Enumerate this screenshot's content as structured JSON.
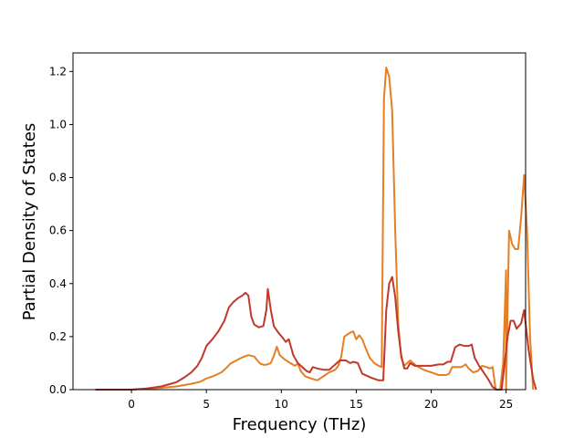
{
  "chart_data": {
    "type": "line",
    "title": "",
    "xlabel": "Frequency (THz)",
    "ylabel": "Partial Density of States",
    "xlim": [
      -3.9,
      26.3
    ],
    "ylim": [
      0.0,
      1.27
    ],
    "xticks": [
      0,
      5,
      10,
      15,
      20,
      25
    ],
    "yticks": [
      0.0,
      0.2,
      0.4,
      0.6,
      0.8,
      1.0,
      1.2
    ],
    "ytick_labels": [
      "0.0",
      "0.2",
      "0.4",
      "0.6",
      "0.8",
      "1.0",
      "1.2"
    ],
    "grid": false,
    "legend": "none",
    "series": [
      {
        "color": "#e67e22",
        "points": [
          [
            -2.4,
            0.0
          ],
          [
            0,
            0.0
          ],
          [
            1,
            0.003
          ],
          [
            2,
            0.007
          ],
          [
            3,
            0.012
          ],
          [
            4,
            0.022
          ],
          [
            4.6,
            0.03
          ],
          [
            5,
            0.042
          ],
          [
            5.5,
            0.052
          ],
          [
            6,
            0.065
          ],
          [
            6.3,
            0.08
          ],
          [
            6.6,
            0.098
          ],
          [
            7,
            0.11
          ],
          [
            7.4,
            0.122
          ],
          [
            7.8,
            0.13
          ],
          [
            8.2,
            0.125
          ],
          [
            8.4,
            0.11
          ],
          [
            8.6,
            0.098
          ],
          [
            8.8,
            0.094
          ],
          [
            9,
            0.094
          ],
          [
            9.3,
            0.1
          ],
          [
            9.5,
            0.128
          ],
          [
            9.7,
            0.162
          ],
          [
            9.9,
            0.13
          ],
          [
            10.2,
            0.115
          ],
          [
            10.6,
            0.1
          ],
          [
            10.9,
            0.09
          ],
          [
            11.1,
            0.098
          ],
          [
            11.3,
            0.07
          ],
          [
            11.6,
            0.05
          ],
          [
            12,
            0.042
          ],
          [
            12.4,
            0.035
          ],
          [
            12.8,
            0.05
          ],
          [
            13.2,
            0.065
          ],
          [
            13.6,
            0.075
          ],
          [
            13.8,
            0.09
          ],
          [
            14,
            0.125
          ],
          [
            14.2,
            0.2
          ],
          [
            14.6,
            0.215
          ],
          [
            14.8,
            0.22
          ],
          [
            15,
            0.19
          ],
          [
            15.2,
            0.205
          ],
          [
            15.4,
            0.19
          ],
          [
            15.6,
            0.16
          ],
          [
            15.9,
            0.12
          ],
          [
            16.2,
            0.1
          ],
          [
            16.5,
            0.09
          ],
          [
            16.7,
            0.085
          ],
          [
            16.85,
            1.1
          ],
          [
            17,
            1.215
          ],
          [
            17.2,
            1.18
          ],
          [
            17.4,
            1.05
          ],
          [
            17.6,
            0.6
          ],
          [
            17.8,
            0.25
          ],
          [
            18,
            0.12
          ],
          [
            18.2,
            0.09
          ],
          [
            18.4,
            0.1
          ],
          [
            18.6,
            0.11
          ],
          [
            18.8,
            0.1
          ],
          [
            19,
            0.09
          ],
          [
            19.5,
            0.075
          ],
          [
            20,
            0.065
          ],
          [
            20.5,
            0.055
          ],
          [
            21,
            0.055
          ],
          [
            21.2,
            0.06
          ],
          [
            21.4,
            0.085
          ],
          [
            21.7,
            0.085
          ],
          [
            22,
            0.085
          ],
          [
            22.3,
            0.095
          ],
          [
            22.5,
            0.08
          ],
          [
            22.8,
            0.065
          ],
          [
            23.1,
            0.07
          ],
          [
            23.4,
            0.09
          ],
          [
            23.7,
            0.085
          ],
          [
            23.9,
            0.08
          ],
          [
            24.1,
            0.085
          ],
          [
            24.3,
            0.0
          ],
          [
            24.6,
            0.0
          ],
          [
            24.8,
            0.1
          ],
          [
            25,
            0.45
          ],
          [
            25.2,
            0.6
          ],
          [
            25.4,
            0.55
          ],
          [
            25.6,
            0.53
          ],
          [
            25.8,
            0.53
          ],
          [
            26.0,
            0.65
          ],
          [
            26.2,
            0.81
          ],
          [
            26.4,
            0.6
          ],
          [
            26.6,
            0.2
          ],
          [
            26.8,
            0.0
          ],
          [
            25,
            0.0
          ]
        ]
      },
      {
        "color": "#c0392b",
        "points": [
          [
            -2.4,
            0.0
          ],
          [
            0,
            0.0
          ],
          [
            1,
            0.004
          ],
          [
            2,
            0.012
          ],
          [
            3,
            0.028
          ],
          [
            3.5,
            0.045
          ],
          [
            4,
            0.065
          ],
          [
            4.4,
            0.09
          ],
          [
            4.7,
            0.12
          ],
          [
            5,
            0.165
          ],
          [
            5.4,
            0.19
          ],
          [
            5.8,
            0.22
          ],
          [
            6.2,
            0.26
          ],
          [
            6.5,
            0.31
          ],
          [
            6.8,
            0.33
          ],
          [
            7.1,
            0.345
          ],
          [
            7.4,
            0.355
          ],
          [
            7.6,
            0.365
          ],
          [
            7.8,
            0.355
          ],
          [
            8.0,
            0.275
          ],
          [
            8.2,
            0.245
          ],
          [
            8.5,
            0.235
          ],
          [
            8.8,
            0.24
          ],
          [
            9.0,
            0.3
          ],
          [
            9.1,
            0.38
          ],
          [
            9.3,
            0.3
          ],
          [
            9.5,
            0.24
          ],
          [
            9.8,
            0.215
          ],
          [
            10.1,
            0.195
          ],
          [
            10.3,
            0.18
          ],
          [
            10.5,
            0.19
          ],
          [
            10.8,
            0.13
          ],
          [
            11.1,
            0.1
          ],
          [
            11.4,
            0.085
          ],
          [
            11.7,
            0.07
          ],
          [
            11.9,
            0.065
          ],
          [
            12.1,
            0.085
          ],
          [
            12.4,
            0.08
          ],
          [
            12.8,
            0.075
          ],
          [
            13.2,
            0.075
          ],
          [
            13.6,
            0.095
          ],
          [
            13.9,
            0.11
          ],
          [
            14.3,
            0.11
          ],
          [
            14.6,
            0.1
          ],
          [
            14.8,
            0.105
          ],
          [
            15.1,
            0.1
          ],
          [
            15.4,
            0.06
          ],
          [
            16.0,
            0.045
          ],
          [
            16.5,
            0.035
          ],
          [
            16.8,
            0.035
          ],
          [
            17.0,
            0.3
          ],
          [
            17.2,
            0.4
          ],
          [
            17.4,
            0.425
          ],
          [
            17.6,
            0.35
          ],
          [
            17.8,
            0.22
          ],
          [
            18.0,
            0.13
          ],
          [
            18.2,
            0.08
          ],
          [
            18.4,
            0.08
          ],
          [
            18.6,
            0.1
          ],
          [
            18.9,
            0.09
          ],
          [
            19.2,
            0.09
          ],
          [
            19.6,
            0.09
          ],
          [
            20.0,
            0.09
          ],
          [
            20.5,
            0.095
          ],
          [
            20.8,
            0.095
          ],
          [
            21.1,
            0.105
          ],
          [
            21.3,
            0.105
          ],
          [
            21.6,
            0.16
          ],
          [
            21.9,
            0.17
          ],
          [
            22.2,
            0.165
          ],
          [
            22.5,
            0.165
          ],
          [
            22.7,
            0.17
          ],
          [
            22.9,
            0.12
          ],
          [
            23.2,
            0.09
          ],
          [
            23.5,
            0.065
          ],
          [
            23.8,
            0.04
          ],
          [
            24.1,
            0.01
          ],
          [
            24.4,
            0.0
          ],
          [
            24.7,
            0.0
          ],
          [
            24.9,
            0.1
          ],
          [
            25.1,
            0.2
          ],
          [
            25.3,
            0.26
          ],
          [
            25.5,
            0.26
          ],
          [
            25.7,
            0.23
          ],
          [
            26.0,
            0.25
          ],
          [
            26.2,
            0.3
          ],
          [
            26.5,
            0.15
          ],
          [
            26.8,
            0.04
          ],
          [
            27.0,
            0.0
          ]
        ]
      }
    ]
  }
}
